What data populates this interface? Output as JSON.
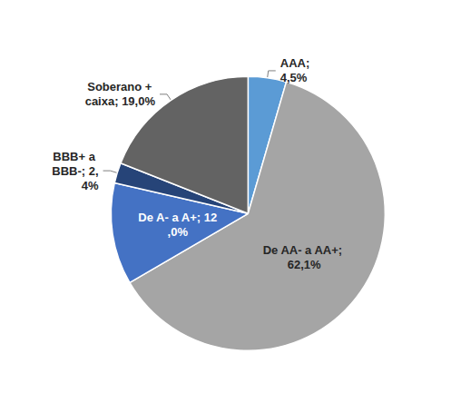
{
  "chart_data": {
    "type": "pie",
    "categories": [
      "AAA",
      "De AA- a AA+",
      "De A- a A+",
      "BBB+ a BBB-",
      "Soberano + caixa"
    ],
    "values": [
      4.5,
      62.1,
      12.0,
      2.4,
      19.0
    ],
    "value_labels": [
      "AAA; 4,5%",
      "De AA- a AA+; 62,1%",
      "De A- a A+; 12,0%",
      "BBB+ a BBB-; 2,4%",
      "Soberano + caixa; 19,0%"
    ],
    "colors": [
      "#5b9bd5",
      "#a5a5a5",
      "#4472c4",
      "#264478",
      "#636363"
    ],
    "data_labels": true
  }
}
